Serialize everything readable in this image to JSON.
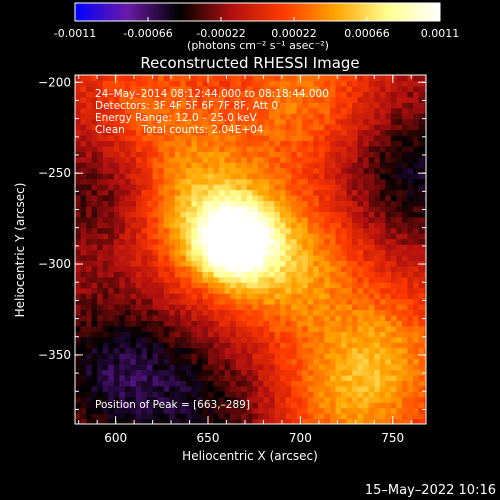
{
  "colorbar": {
    "ticks": [
      "-0.0011",
      "-0.00066",
      "-0.00022",
      "0.00022",
      "0.00066",
      "0.0011"
    ],
    "tick_values": [
      -0.0011,
      -0.00066,
      -0.00022,
      0.00022,
      0.00066,
      0.0011
    ],
    "range": [
      -0.0011,
      0.0011
    ],
    "units_label": "(photons cm⁻² s⁻¹ asec⁻²)",
    "colors": [
      "#0000ff",
      "#6a1aa8",
      "#000000",
      "#b01010",
      "#ff3a00",
      "#ffa500",
      "#ffff90",
      "#ffffff"
    ]
  },
  "footer": {
    "date": "15–May–2022 10:16"
  },
  "chart_data": {
    "type": "heatmap",
    "title": "Reconstructed RHESSI Image",
    "xlabel": "Heliocentric X (arcsec)",
    "ylabel": "Heliocentric Y (arcsec)",
    "xlim": [
      578,
      768
    ],
    "ylim": [
      -388,
      -196
    ],
    "xticks": [
      600,
      650,
      700,
      750
    ],
    "yticks": [
      -200,
      -250,
      -300,
      -350
    ],
    "xtick_labels": [
      "600",
      "650",
      "700",
      "750"
    ],
    "ytick_labels": [
      "−200",
      "−250",
      "−300",
      "−350"
    ],
    "annotations": [
      "24–May–2014 08:12:44.000 to 08:18:44.000",
      "Detectors: 3F 4F 5F 6F 7F 8F, Att 0",
      "Energy Range: 12.0 – 25.0 keV",
      "Clean     Total counts: 2.04E+04"
    ],
    "peak_label": "Position of Peak = [663,–289]",
    "peak": [
      663,
      -289
    ],
    "sources": [
      {
        "x": 663,
        "y": -289,
        "amplitude": 0.0011
      },
      {
        "x": 640,
        "y": -270,
        "amplitude": 0.0007
      },
      {
        "x": 690,
        "y": -300,
        "amplitude": 0.0006
      },
      {
        "x": 700,
        "y": -210,
        "amplitude": 0.00045
      },
      {
        "x": 745,
        "y": -350,
        "amplitude": 0.00045
      },
      {
        "x": 615,
        "y": -215,
        "amplitude": 0.0004
      },
      {
        "x": 720,
        "y": -380,
        "amplitude": 0.0004
      },
      {
        "x": 600,
        "y": -260,
        "amplitude": -0.0004
      },
      {
        "x": 600,
        "y": -360,
        "amplitude": -0.00045
      },
      {
        "x": 760,
        "y": -250,
        "amplitude": -0.0004
      },
      {
        "x": 650,
        "y": -385,
        "amplitude": -0.0003
      }
    ]
  }
}
